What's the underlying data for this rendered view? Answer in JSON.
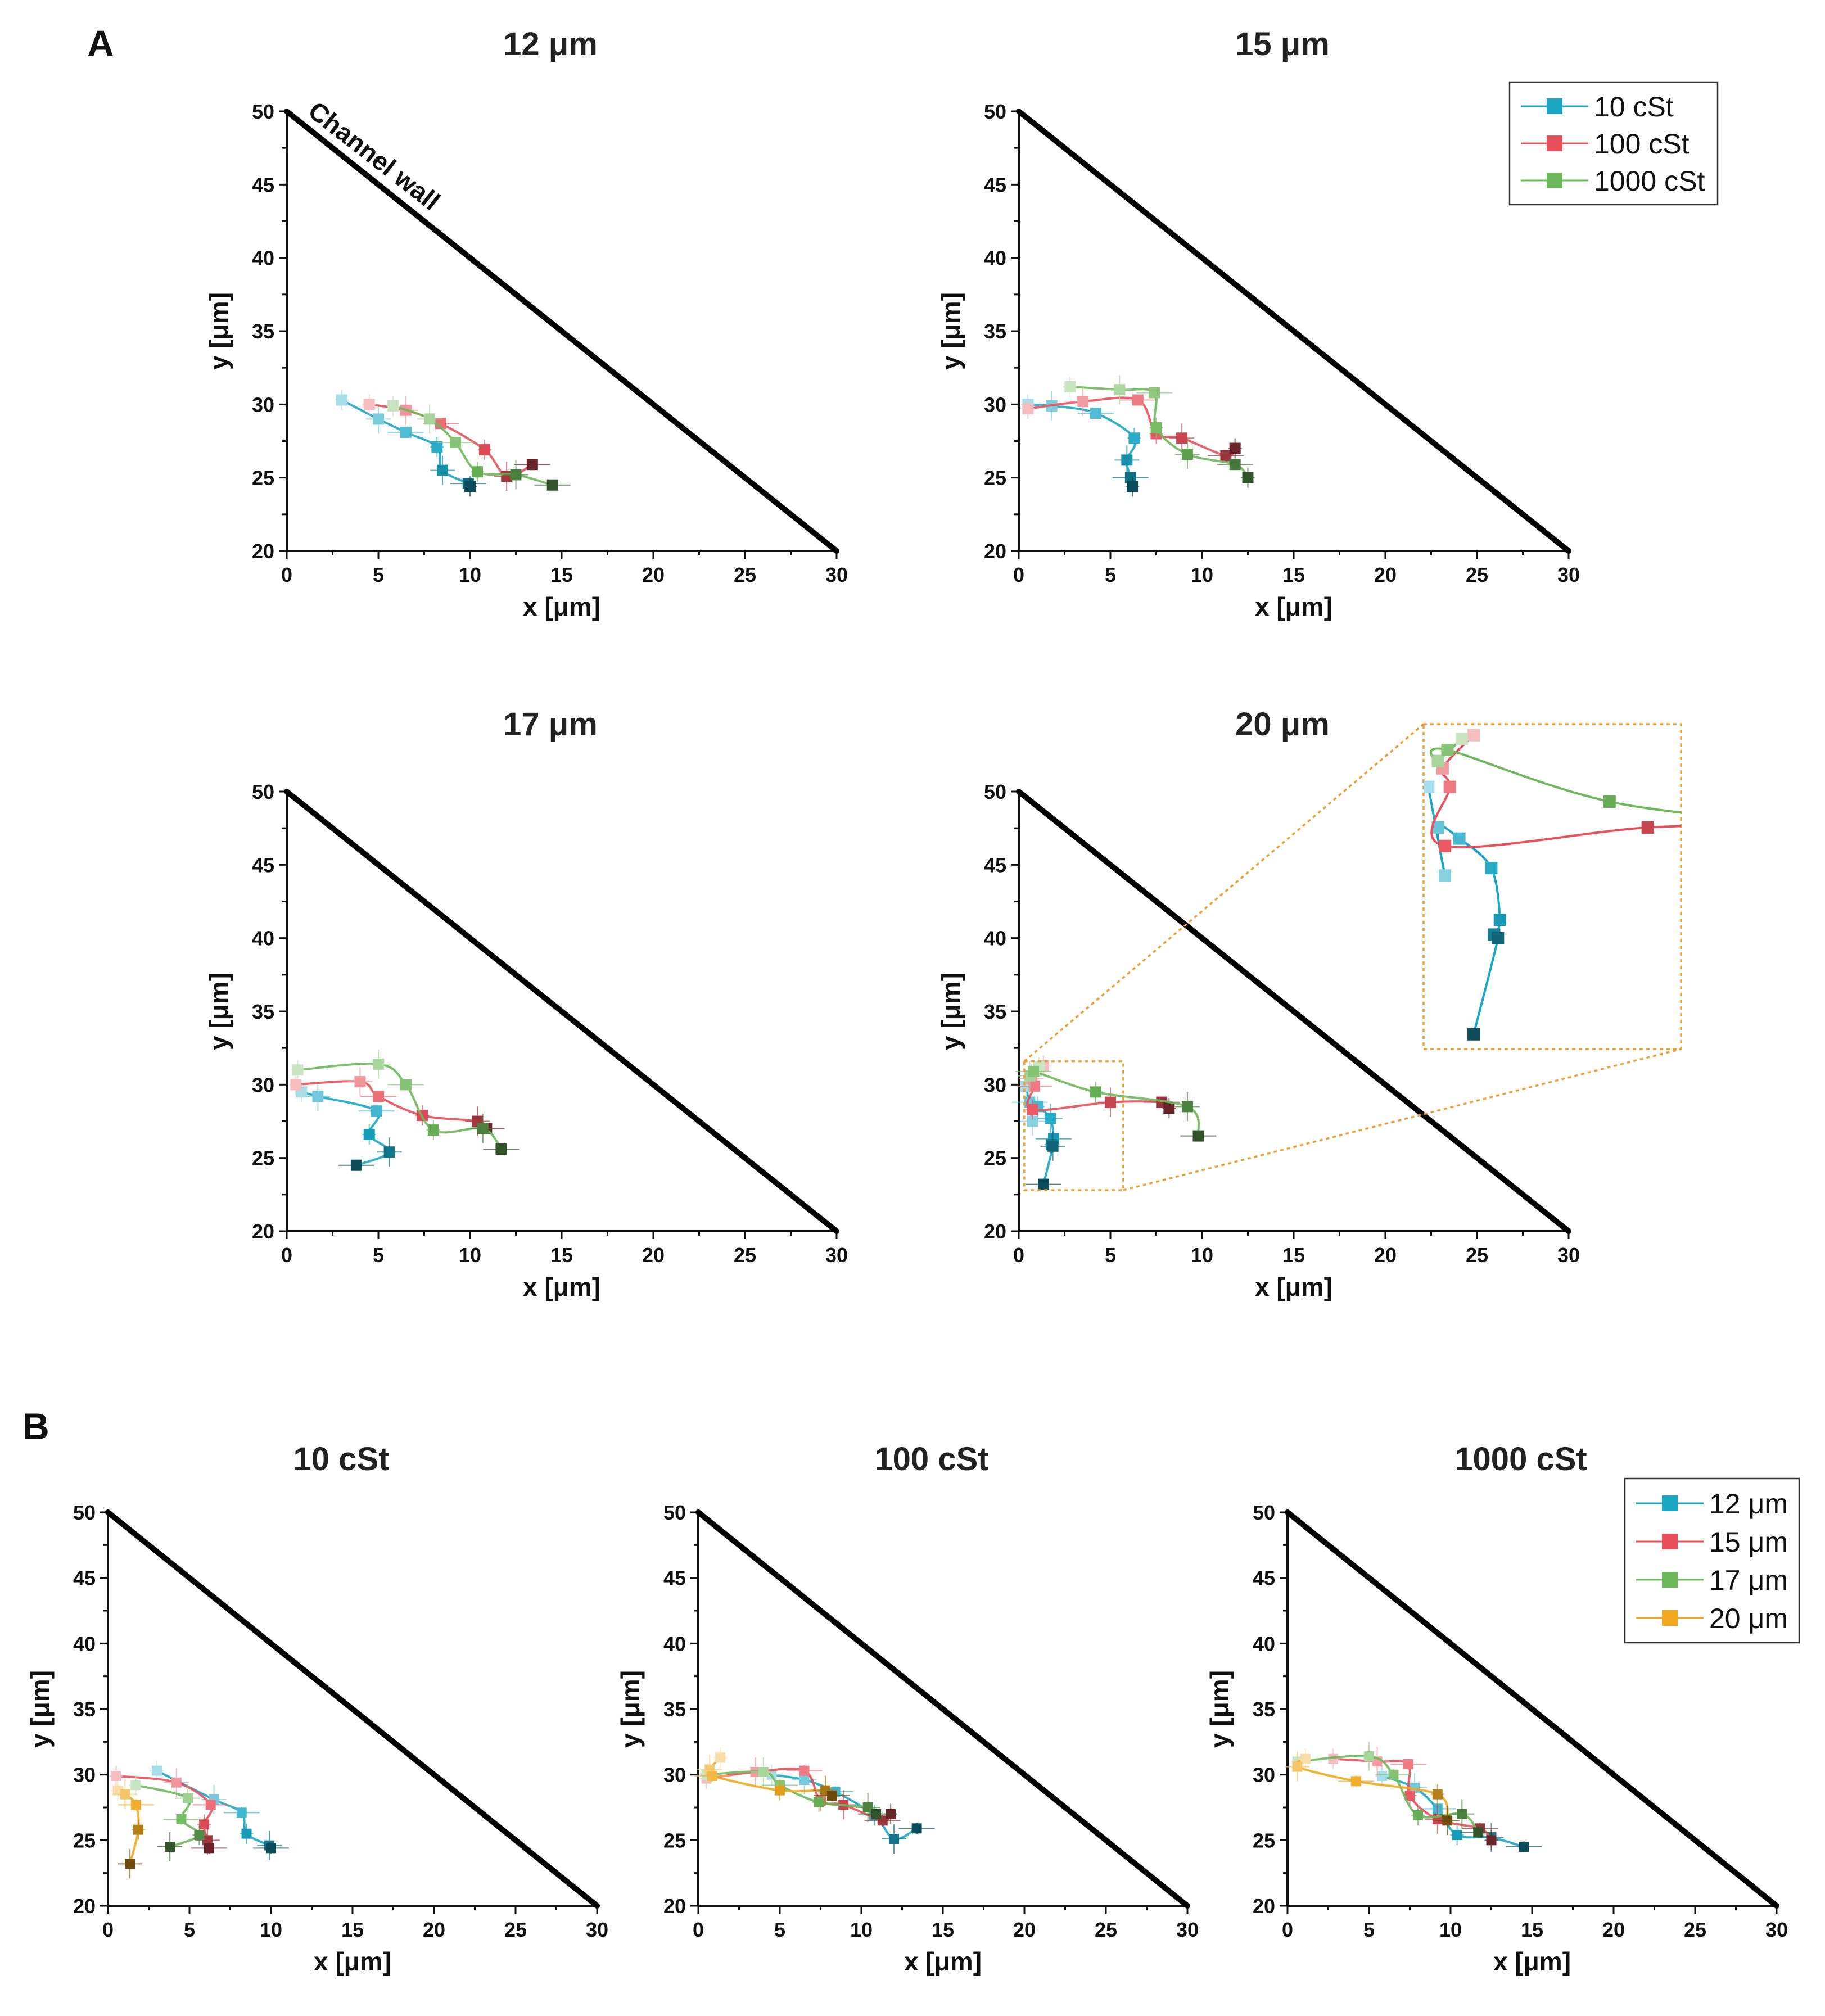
{
  "panel_labels": [
    "A",
    "B"
  ],
  "annotation": "Channel wall",
  "colors": {
    "10 cSt": "#1AA7C5",
    "100 cSt": "#E8505B",
    "1000 cSt": "#6DB85A",
    "12 μm": "#1AA7C5",
    "15 μm": "#E8505B",
    "17 μm": "#6DB85A",
    "20 μm": "#F0A81E",
    "wall": "#000000",
    "zoom_box": "#E8A23A"
  },
  "legend_a": [
    "10 cSt",
    "100 cSt",
    "1000 cSt"
  ],
  "legend_b": [
    "12 μm",
    "15 μm",
    "17 μm",
    "20 μm"
  ],
  "chart_data": [
    {
      "id": "A1",
      "type": "line",
      "title": "12 μm",
      "xlabel": "x [μm]",
      "ylabel": "y [μm]",
      "xlim": [
        0,
        30
      ],
      "ylim": [
        20,
        50
      ],
      "xticks": [
        "0",
        "5",
        "10",
        "15",
        "20",
        "25",
        "30"
      ],
      "yticks": [
        "20",
        "25",
        "30",
        "35",
        "40",
        "45",
        "50"
      ],
      "wall": [
        [
          0,
          50
        ],
        [
          30,
          20
        ]
      ],
      "series": [
        {
          "name": "10 cSt",
          "x": [
            3,
            5,
            6.5,
            8.2,
            8.5,
            9.9,
            10
          ],
          "y": [
            30.3,
            29,
            28.1,
            27.1,
            25.5,
            24.6,
            24.4
          ]
        },
        {
          "name": "100 cSt",
          "x": [
            4.5,
            6.5,
            8.4,
            10.8,
            12,
            13.4
          ],
          "y": [
            30,
            29.6,
            28.7,
            26.9,
            25.1,
            25.9
          ]
        },
        {
          "name": "1000 cSt",
          "x": [
            5.8,
            7.8,
            9.2,
            10.4,
            12.5,
            14.5
          ],
          "y": [
            29.9,
            29,
            27.4,
            25.4,
            25.2,
            24.5
          ]
        }
      ]
    },
    {
      "id": "A2",
      "type": "line",
      "title": "15 μm",
      "xlabel": "x [μm]",
      "ylabel": "y [μm]",
      "xlim": [
        0,
        30
      ],
      "ylim": [
        20,
        50
      ],
      "xticks": [
        "0",
        "5",
        "10",
        "15",
        "20",
        "25",
        "30"
      ],
      "yticks": [
        "20",
        "25",
        "30",
        "35",
        "40",
        "45",
        "50"
      ],
      "wall": [
        [
          0,
          50
        ],
        [
          30,
          20
        ]
      ],
      "series": [
        {
          "name": "10 cSt",
          "x": [
            0.5,
            1.8,
            4.2,
            6.3,
            5.9,
            6.1,
            6.2
          ],
          "y": [
            30,
            29.9,
            29.4,
            27.7,
            26.2,
            25,
            24.4
          ]
        },
        {
          "name": "100 cSt",
          "x": [
            0.5,
            3.5,
            6.5,
            7.5,
            8.9,
            11.3,
            11.8
          ],
          "y": [
            29.7,
            30.2,
            30.3,
            28,
            27.7,
            26.5,
            27
          ]
        },
        {
          "name": "1000 cSt",
          "x": [
            2.8,
            5.5,
            7.4,
            7.5,
            9.2,
            11.8,
            12.5
          ],
          "y": [
            31.2,
            31,
            30.8,
            28.4,
            26.6,
            25.9,
            25
          ]
        }
      ]
    },
    {
      "id": "A3",
      "type": "line",
      "title": "17 μm",
      "xlabel": "x [μm]",
      "ylabel": "y [μm]",
      "xlim": [
        0,
        30
      ],
      "ylim": [
        20,
        50
      ],
      "xticks": [
        "0",
        "5",
        "10",
        "15",
        "20",
        "25",
        "30"
      ],
      "yticks": [
        "20",
        "25",
        "30",
        "35",
        "40",
        "45",
        "50"
      ],
      "wall": [
        [
          0,
          50
        ],
        [
          30,
          20
        ]
      ],
      "series": [
        {
          "name": "10 cSt",
          "x": [
            0.8,
            1.7,
            4.9,
            4.5,
            5.6,
            3.8
          ],
          "y": [
            29.5,
            29.2,
            28.2,
            26.6,
            25.4,
            24.5
          ]
        },
        {
          "name": "100 cSt",
          "x": [
            0.5,
            4,
            5,
            7.4,
            10.4,
            10.9
          ],
          "y": [
            30,
            30.2,
            29.2,
            27.9,
            27.5,
            27
          ]
        },
        {
          "name": "1000 cSt",
          "x": [
            0.6,
            5,
            6.5,
            8,
            10.7,
            11.7
          ],
          "y": [
            31,
            31.4,
            30,
            26.9,
            27,
            25.6
          ]
        }
      ]
    },
    {
      "id": "A4",
      "type": "line",
      "title": "20 μm",
      "xlabel": "x [μm]",
      "ylabel": "y [μm]",
      "xlim": [
        0,
        30
      ],
      "ylim": [
        20,
        50
      ],
      "xticks": [
        "0",
        "5",
        "10",
        "15",
        "20",
        "25",
        "30"
      ],
      "yticks": [
        "20",
        "25",
        "30",
        "35",
        "40",
        "45",
        "50"
      ],
      "wall": [
        [
          0,
          50
        ],
        [
          30,
          20
        ]
      ],
      "zoom_box": {
        "x": [
          0.3,
          5.7
        ],
        "y": [
          22.8,
          31.6
        ]
      },
      "series": [
        {
          "name": "10 cSt",
          "x": [
            0.4,
            0.75,
            0.6,
            1.05,
            1.72,
            1.9,
            1.78,
            1.86,
            1.35
          ],
          "y": [
            29.9,
            27.5,
            28.8,
            28.5,
            27.7,
            26.3,
            25.9,
            25.8,
            23.2
          ]
        },
        {
          "name": "100 cSt",
          "x": [
            1.35,
            0.7,
            0.85,
            0.75,
            5,
            7.8,
            8.2
          ],
          "y": [
            31.3,
            30.4,
            29.9,
            28.3,
            28.8,
            28.8,
            28.4
          ]
        },
        {
          "name": "1000 cSt",
          "x": [
            1.1,
            0.6,
            0.8,
            4.2,
            9.2,
            9.8
          ],
          "y": [
            31.2,
            30.6,
            30.9,
            29.5,
            28.5,
            26.5
          ]
        }
      ]
    },
    {
      "id": "B1",
      "type": "line",
      "title": "10 cSt",
      "xlabel": "x [μm]",
      "ylabel": "y [μm]",
      "xlim": [
        0,
        30
      ],
      "ylim": [
        20,
        50
      ],
      "xticks": [
        "0",
        "5",
        "10",
        "15",
        "20",
        "25",
        "30"
      ],
      "yticks": [
        "20",
        "25",
        "30",
        "35",
        "40",
        "45",
        "50"
      ],
      "wall": [
        [
          0,
          50
        ],
        [
          30,
          20
        ]
      ],
      "series": [
        {
          "name": "12 μm",
          "x": [
            3,
            6.5,
            8.2,
            8.5,
            9.9,
            10
          ],
          "y": [
            30.3,
            28.1,
            27.1,
            25.5,
            24.6,
            24.4
          ]
        },
        {
          "name": "15 μm",
          "x": [
            0.5,
            4.2,
            6.3,
            5.9,
            6.1,
            6.2
          ],
          "y": [
            29.9,
            29.4,
            27.7,
            26.2,
            25,
            24.4
          ]
        },
        {
          "name": "17 μm",
          "x": [
            1.7,
            4.9,
            4.5,
            5.6,
            3.8
          ],
          "y": [
            29.2,
            28.2,
            26.6,
            25.4,
            24.5
          ]
        },
        {
          "name": "20 μm",
          "x": [
            0.6,
            1.05,
            1.72,
            1.86,
            1.35
          ],
          "y": [
            28.8,
            28.5,
            27.7,
            25.8,
            23.2
          ]
        }
      ]
    },
    {
      "id": "B2",
      "type": "line",
      "title": "100 cSt",
      "xlabel": "x [μm]",
      "ylabel": "y [μm]",
      "xlim": [
        0,
        30
      ],
      "ylim": [
        20,
        50
      ],
      "xticks": [
        "0",
        "5",
        "10",
        "15",
        "20",
        "25",
        "30"
      ],
      "yticks": [
        "20",
        "25",
        "30",
        "35",
        "40",
        "45",
        "50"
      ],
      "wall": [
        [
          0,
          50
        ],
        [
          30,
          20
        ]
      ],
      "series": [
        {
          "name": "12 μm",
          "x": [
            4.5,
            6.5,
            8.4,
            10.8,
            12,
            13.4
          ],
          "y": [
            30,
            29.6,
            28.7,
            26.9,
            25.1,
            25.9
          ]
        },
        {
          "name": "15 μm",
          "x": [
            0.5,
            3.5,
            6.5,
            7.5,
            8.9,
            11.3,
            11.8
          ],
          "y": [
            29.7,
            30.2,
            30.3,
            28,
            27.7,
            26.5,
            27
          ]
        },
        {
          "name": "17 μm",
          "x": [
            0.5,
            4,
            5,
            7.4,
            10.4,
            10.9
          ],
          "y": [
            30,
            30.2,
            29.2,
            27.9,
            27.5,
            27
          ]
        },
        {
          "name": "20 μm",
          "x": [
            1.35,
            0.7,
            0.85,
            5,
            7.8,
            8.2
          ],
          "y": [
            31.3,
            30.4,
            29.9,
            28.8,
            28.8,
            28.4
          ]
        }
      ]
    },
    {
      "id": "B3",
      "type": "line",
      "title": "1000 cSt",
      "xlabel": "x [μm]",
      "ylabel": "y [μm]",
      "xlim": [
        0,
        30
      ],
      "ylim": [
        20,
        50
      ],
      "xticks": [
        "0",
        "5",
        "10",
        "15",
        "20",
        "25",
        "30"
      ],
      "yticks": [
        "20",
        "25",
        "30",
        "35",
        "40",
        "45",
        "50"
      ],
      "wall": [
        [
          0,
          50
        ],
        [
          30,
          20
        ]
      ],
      "series": [
        {
          "name": "12 μm",
          "x": [
            5.8,
            7.8,
            9.2,
            10.4,
            12.5,
            14.5
          ],
          "y": [
            29.9,
            29,
            27.4,
            25.4,
            25.2,
            24.5
          ]
        },
        {
          "name": "15 μm",
          "x": [
            2.8,
            5.5,
            7.4,
            7.5,
            9.2,
            11.8,
            12.5
          ],
          "y": [
            31.2,
            31,
            30.8,
            28.4,
            26.6,
            25.9,
            25
          ]
        },
        {
          "name": "17 μm",
          "x": [
            0.6,
            5,
            6.5,
            8,
            10.7,
            11.7
          ],
          "y": [
            31,
            31.4,
            30,
            26.9,
            27,
            25.6
          ]
        },
        {
          "name": "20 μm",
          "x": [
            1.1,
            0.6,
            4.2,
            9.2,
            9.8
          ],
          "y": [
            31.2,
            30.6,
            29.5,
            28.5,
            26.5
          ]
        }
      ]
    }
  ]
}
